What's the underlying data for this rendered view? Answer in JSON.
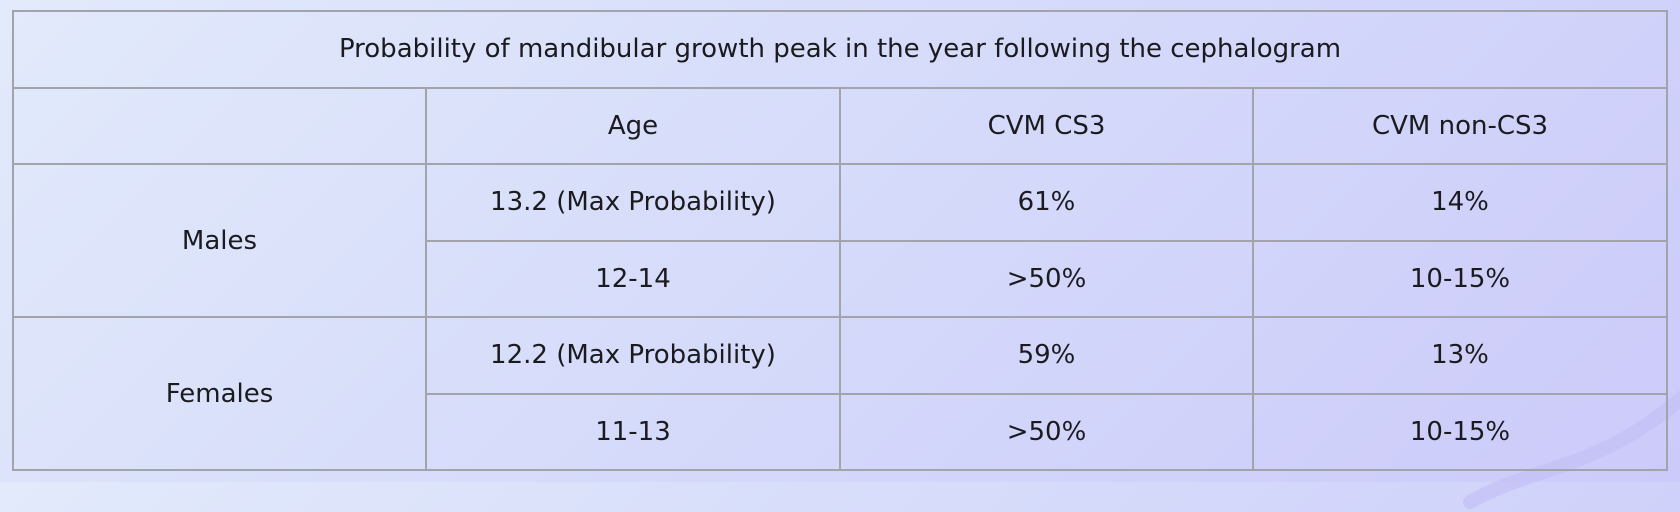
{
  "table": {
    "title": "Probability of mandibular growth peak in the year following the cephalogram",
    "headers": [
      "",
      "Age",
      "CVM CS3",
      "CVM non-CS3"
    ],
    "groups": [
      {
        "label": "Males",
        "rows": [
          {
            "age": "13.2 (Max Probability)",
            "cs3": "61%",
            "non_cs3": "14%"
          },
          {
            "age": "12-14",
            "cs3": ">50%",
            "non_cs3": "10-15%"
          }
        ]
      },
      {
        "label": "Females",
        "rows": [
          {
            "age": "12.2 (Max Probability)",
            "cs3": "59%",
            "non_cs3": "13%"
          },
          {
            "age": "11-13",
            "cs3": ">50%",
            "non_cs3": "10-15%"
          }
        ]
      }
    ]
  },
  "colors": {
    "border": "#a3a3ab",
    "background_start": "#e2eafb",
    "background_end": "#cccafa"
  }
}
